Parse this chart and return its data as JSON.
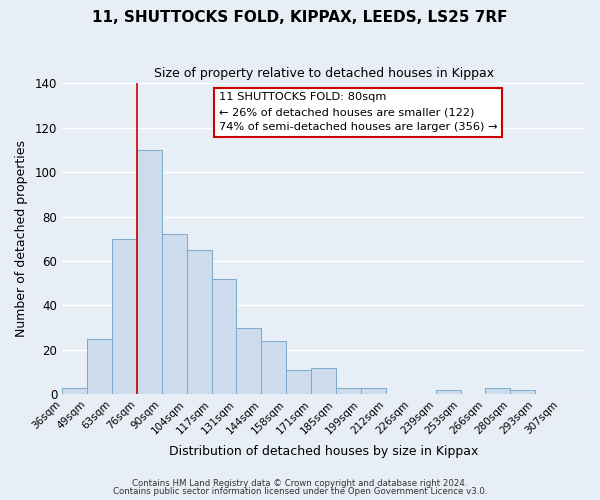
{
  "title": "11, SHUTTOCKS FOLD, KIPPAX, LEEDS, LS25 7RF",
  "subtitle": "Size of property relative to detached houses in Kippax",
  "xlabel": "Distribution of detached houses by size in Kippax",
  "ylabel": "Number of detached properties",
  "footer1": "Contains HM Land Registry data © Crown copyright and database right 2024.",
  "footer2": "Contains public sector information licensed under the Open Government Licence v3.0.",
  "bin_labels": [
    "36sqm",
    "49sqm",
    "63sqm",
    "76sqm",
    "90sqm",
    "104sqm",
    "117sqm",
    "131sqm",
    "144sqm",
    "158sqm",
    "171sqm",
    "185sqm",
    "199sqm",
    "212sqm",
    "226sqm",
    "239sqm",
    "253sqm",
    "266sqm",
    "280sqm",
    "293sqm",
    "307sqm"
  ],
  "bar_heights": [
    3,
    25,
    70,
    110,
    72,
    65,
    52,
    30,
    24,
    11,
    12,
    3,
    3,
    0,
    0,
    2,
    0,
    3,
    2,
    0,
    0
  ],
  "bar_color": "#ccdcec",
  "bar_edge_color": "#7aaaca",
  "vline_x": 3.0,
  "vline_color": "#cc0000",
  "annotation_title": "11 SHUTTOCKS FOLD: 80sqm",
  "annotation_line1": "← 26% of detached houses are smaller (122)",
  "annotation_line2": "74% of semi-detached houses are larger (356) →",
  "annotation_box_color": "#ffffff",
  "annotation_box_edge": "#cc0000",
  "ylim": [
    0,
    140
  ],
  "yticks": [
    0,
    20,
    40,
    60,
    80,
    100,
    120,
    140
  ],
  "background_color": "#e8eef5",
  "plot_background": "#e8eef5",
  "grid_color": "#ffffff"
}
